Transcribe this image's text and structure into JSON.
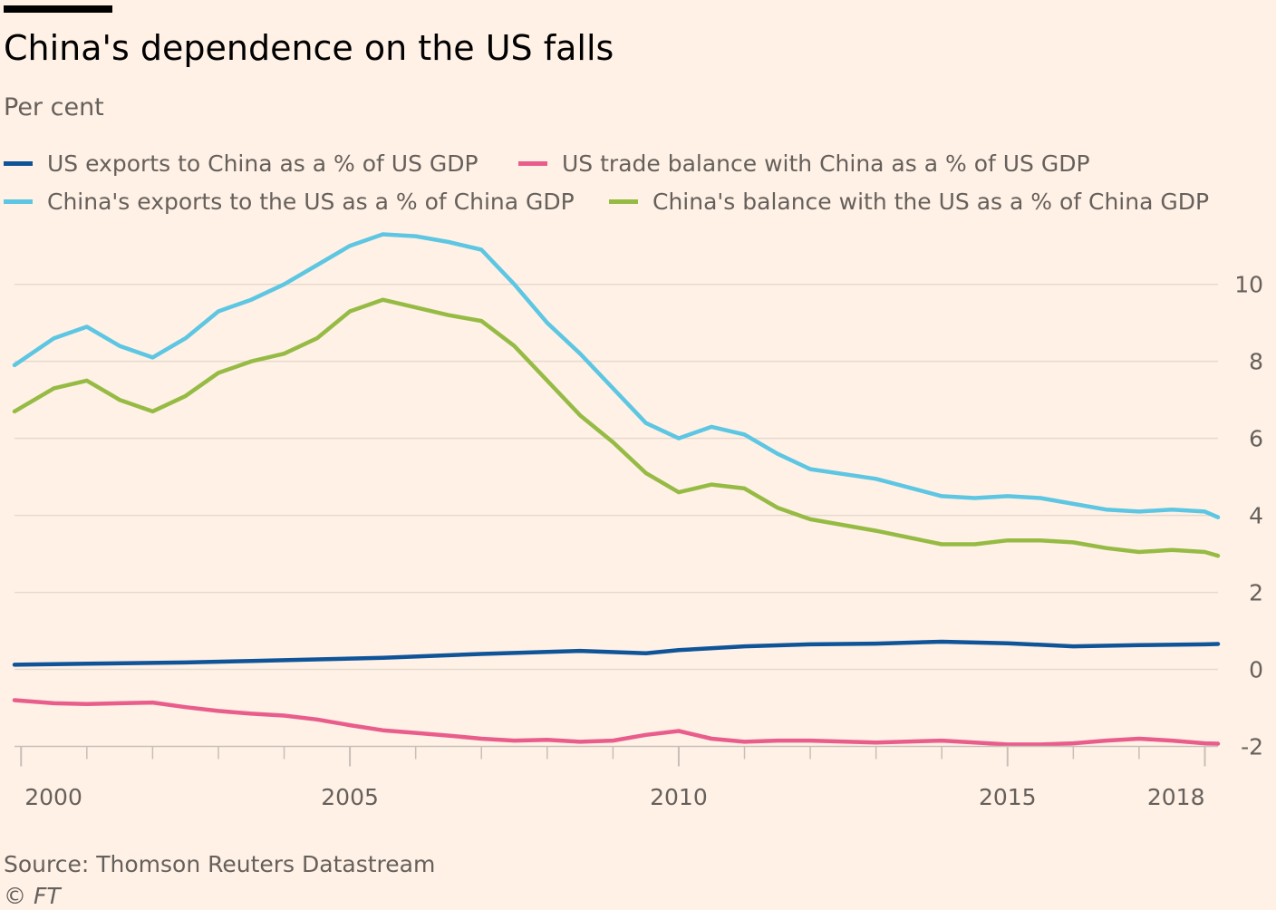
{
  "chart_data": {
    "type": "line",
    "title": "China's dependence on the US falls",
    "subtitle": "Per cent",
    "source": "Source: Thomson Reuters Datastream",
    "credit": "© FT",
    "xlim": [
      1999.9,
      2018.2
    ],
    "ylim": [
      -2.2,
      11.5
    ],
    "x_ticks": [
      2000,
      2005,
      2010,
      2015,
      2018
    ],
    "y_ticks": [
      10,
      8,
      6,
      4,
      2,
      0,
      -2
    ],
    "grid": true,
    "legend_position": "top",
    "series": [
      {
        "name": "US exports to China as a % of US GDP",
        "color": "#0f5499",
        "points": [
          [
            1999.9,
            0.12
          ],
          [
            2001.0,
            0.15
          ],
          [
            2002.5,
            0.18
          ],
          [
            2003.5,
            0.22
          ],
          [
            2004.5,
            0.26
          ],
          [
            2005.5,
            0.3
          ],
          [
            2007.0,
            0.4
          ],
          [
            2008.5,
            0.48
          ],
          [
            2009.5,
            0.42
          ],
          [
            2010.0,
            0.5
          ],
          [
            2011.0,
            0.6
          ],
          [
            2012.0,
            0.65
          ],
          [
            2013.0,
            0.67
          ],
          [
            2014.0,
            0.72
          ],
          [
            2015.0,
            0.68
          ],
          [
            2016.0,
            0.6
          ],
          [
            2017.0,
            0.63
          ],
          [
            2018.0,
            0.65
          ],
          [
            2018.2,
            0.66
          ]
        ]
      },
      {
        "name": "US trade balance with China as a % of US GDP",
        "color": "#e95d8c",
        "points": [
          [
            1999.9,
            -0.8
          ],
          [
            2000.5,
            -0.88
          ],
          [
            2001.0,
            -0.9
          ],
          [
            2001.5,
            -0.88
          ],
          [
            2002.0,
            -0.86
          ],
          [
            2002.5,
            -0.98
          ],
          [
            2003.0,
            -1.08
          ],
          [
            2003.5,
            -1.15
          ],
          [
            2004.0,
            -1.2
          ],
          [
            2004.5,
            -1.3
          ],
          [
            2005.0,
            -1.45
          ],
          [
            2005.5,
            -1.58
          ],
          [
            2006.0,
            -1.65
          ],
          [
            2006.5,
            -1.72
          ],
          [
            2007.0,
            -1.8
          ],
          [
            2007.5,
            -1.85
          ],
          [
            2008.0,
            -1.83
          ],
          [
            2008.5,
            -1.88
          ],
          [
            2009.0,
            -1.85
          ],
          [
            2009.5,
            -1.7
          ],
          [
            2010.0,
            -1.6
          ],
          [
            2010.5,
            -1.8
          ],
          [
            2011.0,
            -1.88
          ],
          [
            2011.5,
            -1.85
          ],
          [
            2012.0,
            -1.85
          ],
          [
            2013.0,
            -1.9
          ],
          [
            2014.0,
            -1.85
          ],
          [
            2014.5,
            -1.9
          ],
          [
            2015.0,
            -1.95
          ],
          [
            2015.5,
            -1.95
          ],
          [
            2016.0,
            -1.92
          ],
          [
            2016.5,
            -1.85
          ],
          [
            2017.0,
            -1.8
          ],
          [
            2017.5,
            -1.85
          ],
          [
            2018.0,
            -1.92
          ],
          [
            2018.2,
            -1.93
          ]
        ]
      },
      {
        "name": "China's exports to the US as a % of China GDP",
        "color": "#5dc6e3",
        "points": [
          [
            1999.9,
            7.9
          ],
          [
            2000.5,
            8.6
          ],
          [
            2001.0,
            8.9
          ],
          [
            2001.5,
            8.4
          ],
          [
            2002.0,
            8.1
          ],
          [
            2002.5,
            8.6
          ],
          [
            2003.0,
            9.3
          ],
          [
            2003.5,
            9.6
          ],
          [
            2004.0,
            10.0
          ],
          [
            2004.5,
            10.5
          ],
          [
            2005.0,
            11.0
          ],
          [
            2005.5,
            11.3
          ],
          [
            2006.0,
            11.25
          ],
          [
            2006.5,
            11.1
          ],
          [
            2007.0,
            10.9
          ],
          [
            2007.5,
            10.0
          ],
          [
            2008.0,
            9.0
          ],
          [
            2008.5,
            8.2
          ],
          [
            2009.0,
            7.3
          ],
          [
            2009.5,
            6.4
          ],
          [
            2010.0,
            6.0
          ],
          [
            2010.5,
            6.3
          ],
          [
            2011.0,
            6.1
          ],
          [
            2011.5,
            5.6
          ],
          [
            2012.0,
            5.2
          ],
          [
            2013.0,
            4.95
          ],
          [
            2014.0,
            4.5
          ],
          [
            2014.5,
            4.45
          ],
          [
            2015.0,
            4.5
          ],
          [
            2015.5,
            4.45
          ],
          [
            2016.0,
            4.3
          ],
          [
            2016.5,
            4.15
          ],
          [
            2017.0,
            4.1
          ],
          [
            2017.5,
            4.15
          ],
          [
            2018.0,
            4.1
          ],
          [
            2018.2,
            3.95
          ]
        ]
      },
      {
        "name": "China's balance with the US as a % of China GDP",
        "color": "#96bb45",
        "points": [
          [
            1999.9,
            6.7
          ],
          [
            2000.5,
            7.3
          ],
          [
            2001.0,
            7.5
          ],
          [
            2001.5,
            7.0
          ],
          [
            2002.0,
            6.7
          ],
          [
            2002.5,
            7.1
          ],
          [
            2003.0,
            7.7
          ],
          [
            2003.5,
            8.0
          ],
          [
            2004.0,
            8.2
          ],
          [
            2004.5,
            8.6
          ],
          [
            2005.0,
            9.3
          ],
          [
            2005.5,
            9.6
          ],
          [
            2006.0,
            9.4
          ],
          [
            2006.5,
            9.2
          ],
          [
            2007.0,
            9.05
          ],
          [
            2007.5,
            8.4
          ],
          [
            2008.0,
            7.5
          ],
          [
            2008.5,
            6.6
          ],
          [
            2009.0,
            5.9
          ],
          [
            2009.5,
            5.1
          ],
          [
            2010.0,
            4.6
          ],
          [
            2010.5,
            4.8
          ],
          [
            2011.0,
            4.7
          ],
          [
            2011.5,
            4.2
          ],
          [
            2012.0,
            3.9
          ],
          [
            2013.0,
            3.6
          ],
          [
            2014.0,
            3.25
          ],
          [
            2014.5,
            3.25
          ],
          [
            2015.0,
            3.35
          ],
          [
            2015.5,
            3.35
          ],
          [
            2016.0,
            3.3
          ],
          [
            2016.5,
            3.15
          ],
          [
            2017.0,
            3.05
          ],
          [
            2017.5,
            3.1
          ],
          [
            2018.0,
            3.05
          ],
          [
            2018.2,
            2.95
          ]
        ]
      }
    ]
  }
}
